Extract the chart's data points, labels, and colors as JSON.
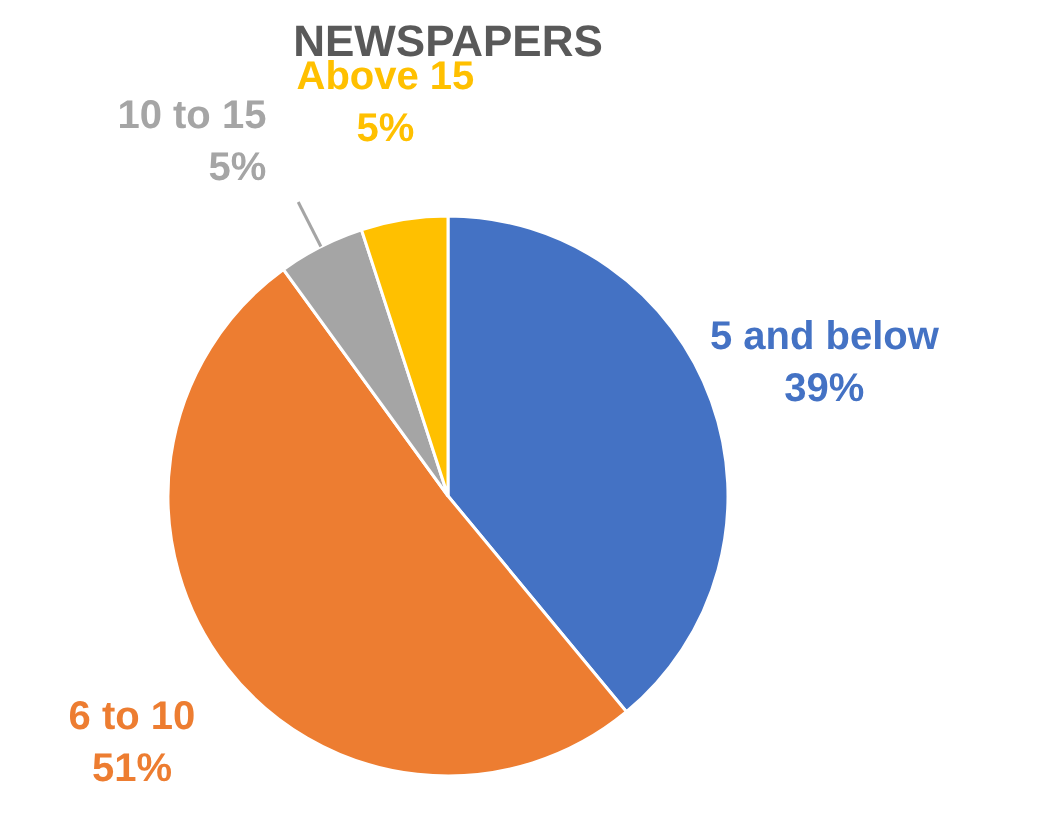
{
  "chart_data": {
    "type": "pie",
    "title": "NEWSPAPERS",
    "categories": [
      "5 and below",
      "6 to 10",
      "10 to 15",
      "Above 15"
    ],
    "values": [
      39,
      51,
      5,
      5
    ],
    "value_labels": [
      "39%",
      "51%",
      "5%",
      "5%"
    ],
    "colors": [
      "#4472c4",
      "#ed7d31",
      "#a5a5a5",
      "#ffc000"
    ]
  }
}
